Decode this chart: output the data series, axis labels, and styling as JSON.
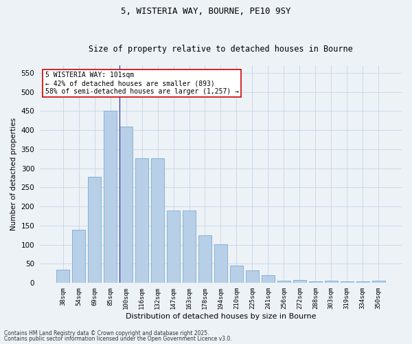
{
  "title1": "5, WISTERIA WAY, BOURNE, PE10 9SY",
  "title2": "Size of property relative to detached houses in Bourne",
  "xlabel": "Distribution of detached houses by size in Bourne",
  "ylabel": "Number of detached properties",
  "categories": [
    "38sqm",
    "54sqm",
    "69sqm",
    "85sqm",
    "100sqm",
    "116sqm",
    "132sqm",
    "147sqm",
    "163sqm",
    "178sqm",
    "194sqm",
    "210sqm",
    "225sqm",
    "241sqm",
    "256sqm",
    "272sqm",
    "288sqm",
    "303sqm",
    "319sqm",
    "334sqm",
    "350sqm"
  ],
  "values": [
    35,
    138,
    278,
    450,
    410,
    326,
    326,
    190,
    190,
    125,
    101,
    45,
    33,
    19,
    6,
    8,
    4,
    5,
    4,
    4,
    5
  ],
  "bar_color": "#b8cfe8",
  "bar_edge_color": "#7aaad0",
  "highlight_index": 4,
  "highlight_line_color": "#3333aa",
  "ylim": [
    0,
    570
  ],
  "yticks": [
    0,
    50,
    100,
    150,
    200,
    250,
    300,
    350,
    400,
    450,
    500,
    550
  ],
  "annotation_text": "5 WISTERIA WAY: 101sqm\n← 42% of detached houses are smaller (893)\n58% of semi-detached houses are larger (1,257) →",
  "annotation_box_facecolor": "#ffffff",
  "annotation_box_edgecolor": "#cc0000",
  "bg_color": "#edf2f7",
  "grid_color": "#c5d5e5",
  "footer1": "Contains HM Land Registry data © Crown copyright and database right 2025.",
  "footer2": "Contains public sector information licensed under the Open Government Licence v3.0.",
  "title1_fontsize": 9,
  "title2_fontsize": 8.5,
  "xlabel_fontsize": 8,
  "ylabel_fontsize": 7.5,
  "xtick_fontsize": 6.5,
  "ytick_fontsize": 7.5,
  "annot_fontsize": 7,
  "footer_fontsize": 5.5
}
